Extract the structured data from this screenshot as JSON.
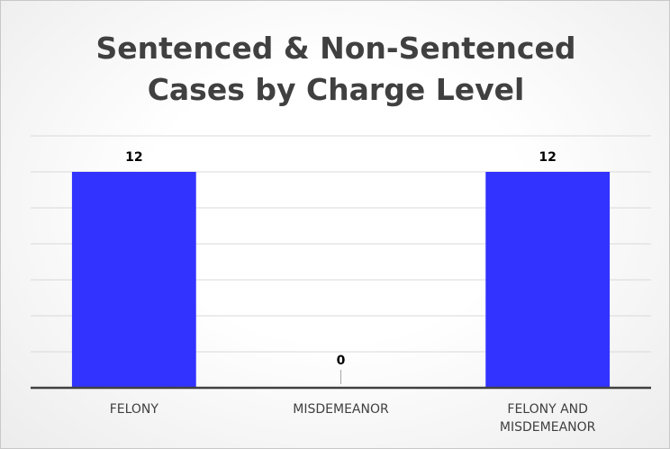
{
  "chart_data": {
    "type": "bar",
    "title": "Sentenced & Non-Sentenced Cases by Charge Level",
    "categories": [
      "FELONY",
      "MISDEMEANOR",
      "FELONY AND MISDEMEANOR"
    ],
    "values": [
      12,
      0,
      12
    ],
    "color": "#3333ff",
    "ylim": [
      0,
      14
    ],
    "yticks": [
      0,
      2,
      4,
      6,
      8,
      10,
      12,
      14
    ],
    "grid": true
  }
}
